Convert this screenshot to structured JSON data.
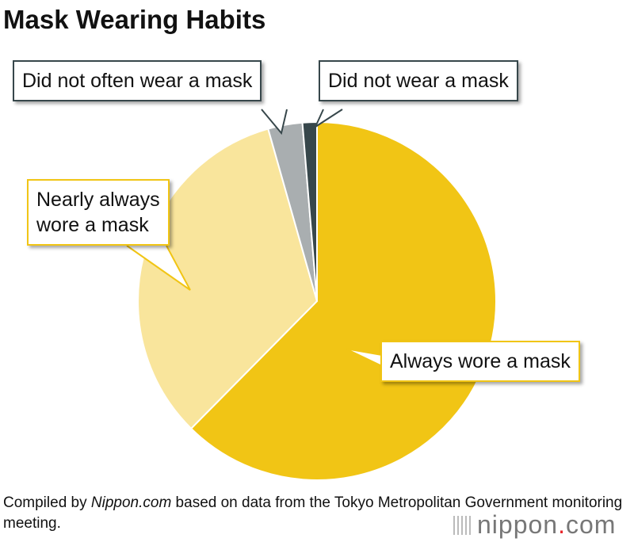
{
  "chart_data": {
    "type": "pie",
    "title": "Mask Wearing Habits",
    "slices": [
      {
        "label": "Always wore a mask",
        "value": 62.4,
        "color": "#f1c515"
      },
      {
        "label": "Nearly always wore a mask",
        "value": 33.2,
        "color": "#f9e59c"
      },
      {
        "label": "Did not often wear a mask",
        "value": 3.1,
        "color": "#a9aeb0"
      },
      {
        "label": "Did not wear a mask",
        "value": 1.3,
        "color": "#37474b"
      }
    ],
    "start": "12 o'clock",
    "direction": "clockwise",
    "labels_line1": {
      "nearly": "Nearly always",
      "nearly2": "wore a mask"
    }
  },
  "source": {
    "prefix": "Compiled by ",
    "site": "Nippon.com",
    "suffix": " based on data from the Tokyo Metropolitan Government monitoring meeting."
  },
  "logo": {
    "name": "nippon",
    "dot": ".",
    "tld": "com"
  }
}
